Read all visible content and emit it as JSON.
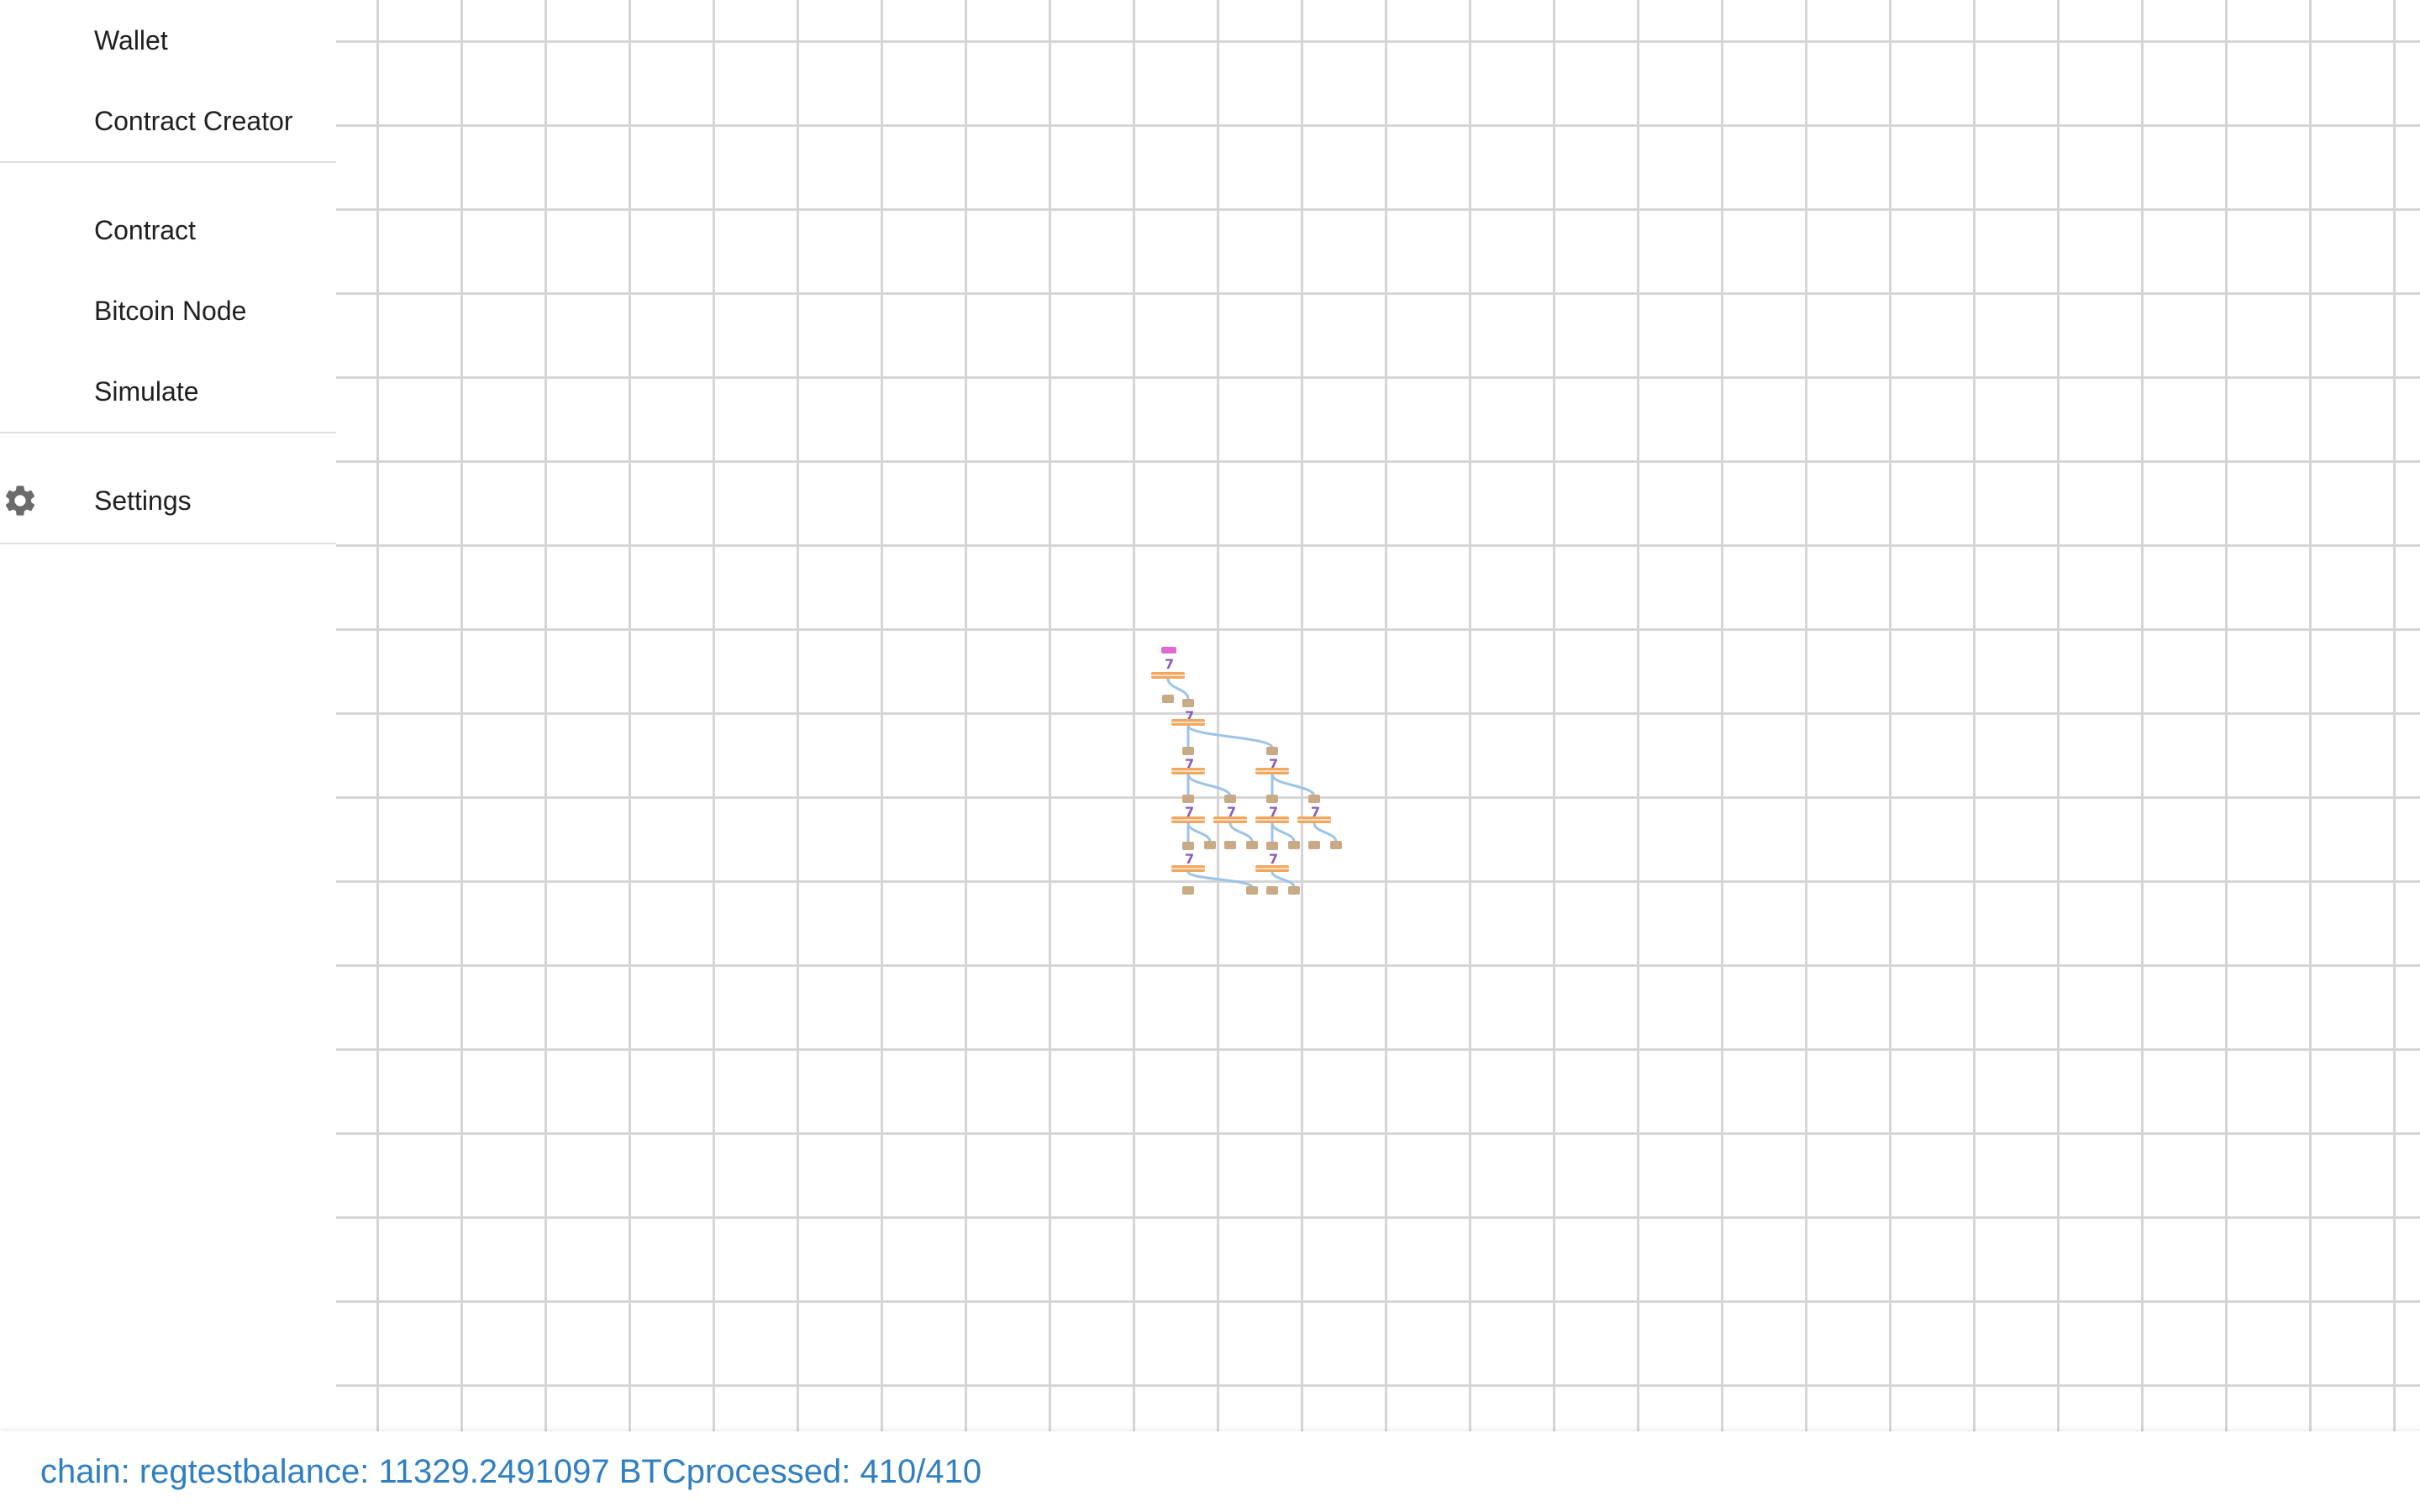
{
  "sidebar": {
    "groups": [
      {
        "items": [
          {
            "label": "Wallet"
          },
          {
            "label": "Contract Creator"
          }
        ]
      },
      {
        "items": [
          {
            "label": "Contract"
          },
          {
            "label": "Bitcoin Node"
          },
          {
            "label": "Simulate"
          }
        ]
      },
      {
        "items": [
          {
            "label": "Settings",
            "icon": "gear-icon"
          }
        ]
      }
    ]
  },
  "status": {
    "chain_label": "chain: ",
    "chain_value": "regtest",
    "balance_label": "balance: ",
    "balance_value": "11329.2491097 BTC",
    "processed_label": "processed: ",
    "processed_value": "410/410"
  },
  "colors": {
    "status_text": "#2f7fc1",
    "grid_line": "#d5d5d5",
    "edge": "#9cc3e8",
    "tx_node": "#f0a860",
    "utxo_node": "#c8aa86",
    "clause_node": "#8a5cb8",
    "root_node": "#e06ad0"
  }
}
